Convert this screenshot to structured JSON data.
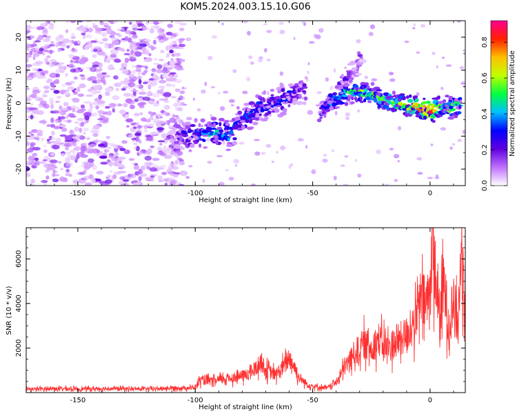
{
  "title": "KOM5.2024.003.15.10.G06",
  "chart_data": [
    {
      "type": "heatmap",
      "xlabel": "Height of straight line (km)",
      "ylabel": "Frequency (Hz)",
      "xlim": [
        -172,
        15
      ],
      "ylim": [
        -25,
        25
      ],
      "xticks": [
        -150,
        -100,
        -50,
        0
      ],
      "yticks": [
        -20,
        -10,
        0,
        10,
        20
      ],
      "grid": false,
      "colorbar": {
        "label": "Normalized spectral amplitude",
        "range": [
          0,
          0.92
        ],
        "ticks": [
          0.0,
          0.2,
          0.4,
          0.6,
          0.8
        ],
        "colormap": [
          "#ffffff",
          "#c070ff",
          "#6000e0",
          "#0000ff",
          "#00c0ff",
          "#00ff40",
          "#c0ff00",
          "#ffc000",
          "#ff2000",
          "#ff0090"
        ]
      },
      "ridge": {
        "description": "",
        "segment1": {
          "x": [
            -108,
            -100,
            -95,
            -90,
            -85,
            -82,
            -78,
            -72,
            -68,
            -62,
            -57,
            -53
          ],
          "y": [
            -10.5,
            -9.5,
            -8.5,
            -9,
            -10,
            -6,
            -4,
            -1,
            0,
            1.5,
            3,
            4.5
          ],
          "amplitude": [
            0.22,
            0.3,
            0.45,
            0.42,
            0.35,
            0.3,
            0.35,
            0.3,
            0.28,
            0.3,
            0.25,
            0.2
          ]
        },
        "segment2": {
          "x": [
            -47,
            -43,
            -40,
            -36,
            -32,
            -28,
            -25,
            -20,
            -15,
            -10,
            -5,
            0,
            5,
            10,
            13
          ],
          "y": [
            -3,
            0,
            1,
            3,
            3.5,
            3.2,
            3,
            1,
            0,
            -0.8,
            -1.5,
            -2.2,
            -1.5,
            -1.2,
            -0.3
          ],
          "amplitude": [
            0.25,
            0.35,
            0.4,
            0.45,
            0.55,
            0.6,
            0.55,
            0.5,
            0.6,
            0.65,
            0.75,
            0.9,
            0.55,
            0.5,
            0.45
          ]
        },
        "spur": {
          "x": [
            -38,
            -35,
            -32,
            -29
          ],
          "y": [
            5,
            8,
            10,
            14
          ],
          "amplitude": [
            0.22,
            0.2,
            0.18,
            0.15
          ]
        },
        "noise_region_x": [
          -172,
          -115
        ]
      }
    },
    {
      "type": "line",
      "xlabel": "Height of straight line (km)",
      "ylabel": "SNR (10 * v/v)",
      "xlim": [
        -172,
        15
      ],
      "ylim": [
        0,
        7400
      ],
      "xticks": [
        -150,
        -100,
        -50,
        0
      ],
      "yticks": [
        2000,
        4000,
        6000
      ],
      "color": "#ff3030",
      "series": [
        {
          "x": [
            -172,
            -160,
            -150,
            -140,
            -130,
            -120,
            -110,
            -100,
            -98,
            -92,
            -86,
            -82,
            -78,
            -74,
            -72,
            -70,
            -66,
            -62,
            -60,
            -58,
            -56,
            -52,
            -48,
            -44,
            -40,
            -36,
            -32,
            -28,
            -25,
            -22,
            -18,
            -14,
            -10,
            -6,
            -4,
            -2,
            0,
            1,
            2,
            4,
            6,
            8,
            10,
            12,
            13,
            15
          ],
          "y": [
            150,
            180,
            160,
            180,
            170,
            160,
            200,
            220,
            550,
            500,
            650,
            700,
            800,
            1100,
            1400,
            1000,
            800,
            1200,
            1600,
            1200,
            700,
            350,
            250,
            200,
            450,
            1200,
            1800,
            2200,
            2000,
            2400,
            2000,
            2300,
            2600,
            3200,
            4200,
            4000,
            4500,
            7300,
            5500,
            3500,
            4800,
            3000,
            4200,
            2800,
            6200,
            4800
          ]
        }
      ]
    }
  ]
}
